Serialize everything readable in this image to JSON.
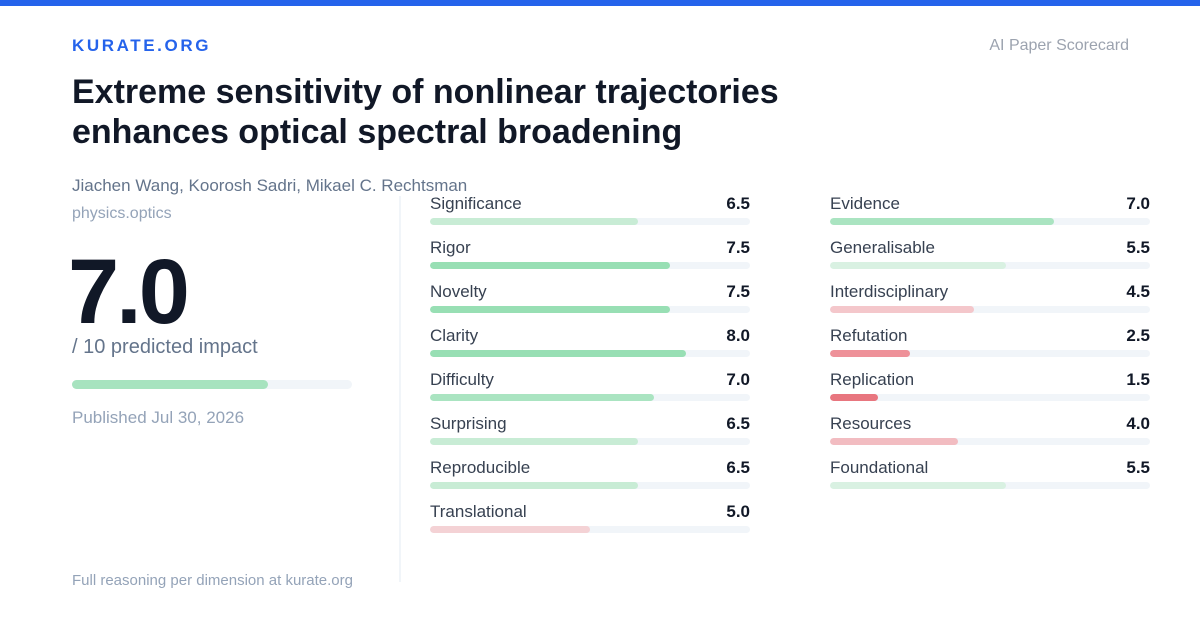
{
  "site": {
    "brand": "KURATE.ORG",
    "kind": "AI Paper Scorecard"
  },
  "paper": {
    "title": "Extreme sensitivity of nonlinear trajectories enhances optical spectral broadening",
    "authors": "Jiachen Wang, Koorosh Sadri, Mikael C. Rechtsman",
    "category": "physics.optics",
    "published": "Published Jul 30, 2026"
  },
  "impact": {
    "score": "7.0",
    "score_value": 7.0,
    "max": 10,
    "suffix": "/ 10 predicted impact"
  },
  "colors": {
    "accent": "#2563eb",
    "bar_high": "#98dfb4",
    "bar_mid": "#c8ecd5",
    "bar_neutral": "#d9f1e2",
    "bar_low_light": "#f2c4c8",
    "bar_low": "#ee9199",
    "bar_lowest": "#e8767f",
    "track": "#f1f5f9"
  },
  "metrics_left": [
    {
      "label": "Significance",
      "score": "6.5",
      "value": 6.5,
      "color": "#c8ecd5"
    },
    {
      "label": "Rigor",
      "score": "7.5",
      "value": 7.5,
      "color": "#98dfb4"
    },
    {
      "label": "Novelty",
      "score": "7.5",
      "value": 7.5,
      "color": "#98dfb4"
    },
    {
      "label": "Clarity",
      "score": "8.0",
      "value": 8.0,
      "color": "#98dfb4"
    },
    {
      "label": "Difficulty",
      "score": "7.0",
      "value": 7.0,
      "color": "#aae4c1"
    },
    {
      "label": "Surprising",
      "score": "6.5",
      "value": 6.5,
      "color": "#c8ecd5"
    },
    {
      "label": "Reproducible",
      "score": "6.5",
      "value": 6.5,
      "color": "#c8ecd5"
    },
    {
      "label": "Translational",
      "score": "5.0",
      "value": 5.0,
      "color": "#f4d2d5"
    }
  ],
  "metrics_right": [
    {
      "label": "Evidence",
      "score": "7.0",
      "value": 7.0,
      "color": "#aae4c1"
    },
    {
      "label": "Generalisable",
      "score": "5.5",
      "value": 5.5,
      "color": "#d9f1e2"
    },
    {
      "label": "Interdisciplinary",
      "score": "4.5",
      "value": 4.5,
      "color": "#f4c7cb"
    },
    {
      "label": "Refutation",
      "score": "2.5",
      "value": 2.5,
      "color": "#ee9199"
    },
    {
      "label": "Replication",
      "score": "1.5",
      "value": 1.5,
      "color": "#e8767f"
    },
    {
      "label": "Resources",
      "score": "4.0",
      "value": 4.0,
      "color": "#f2bcc1"
    },
    {
      "label": "Foundational",
      "score": "5.5",
      "value": 5.5,
      "color": "#d9f1e2"
    }
  ],
  "footer": "Full reasoning per dimension at kurate.org"
}
